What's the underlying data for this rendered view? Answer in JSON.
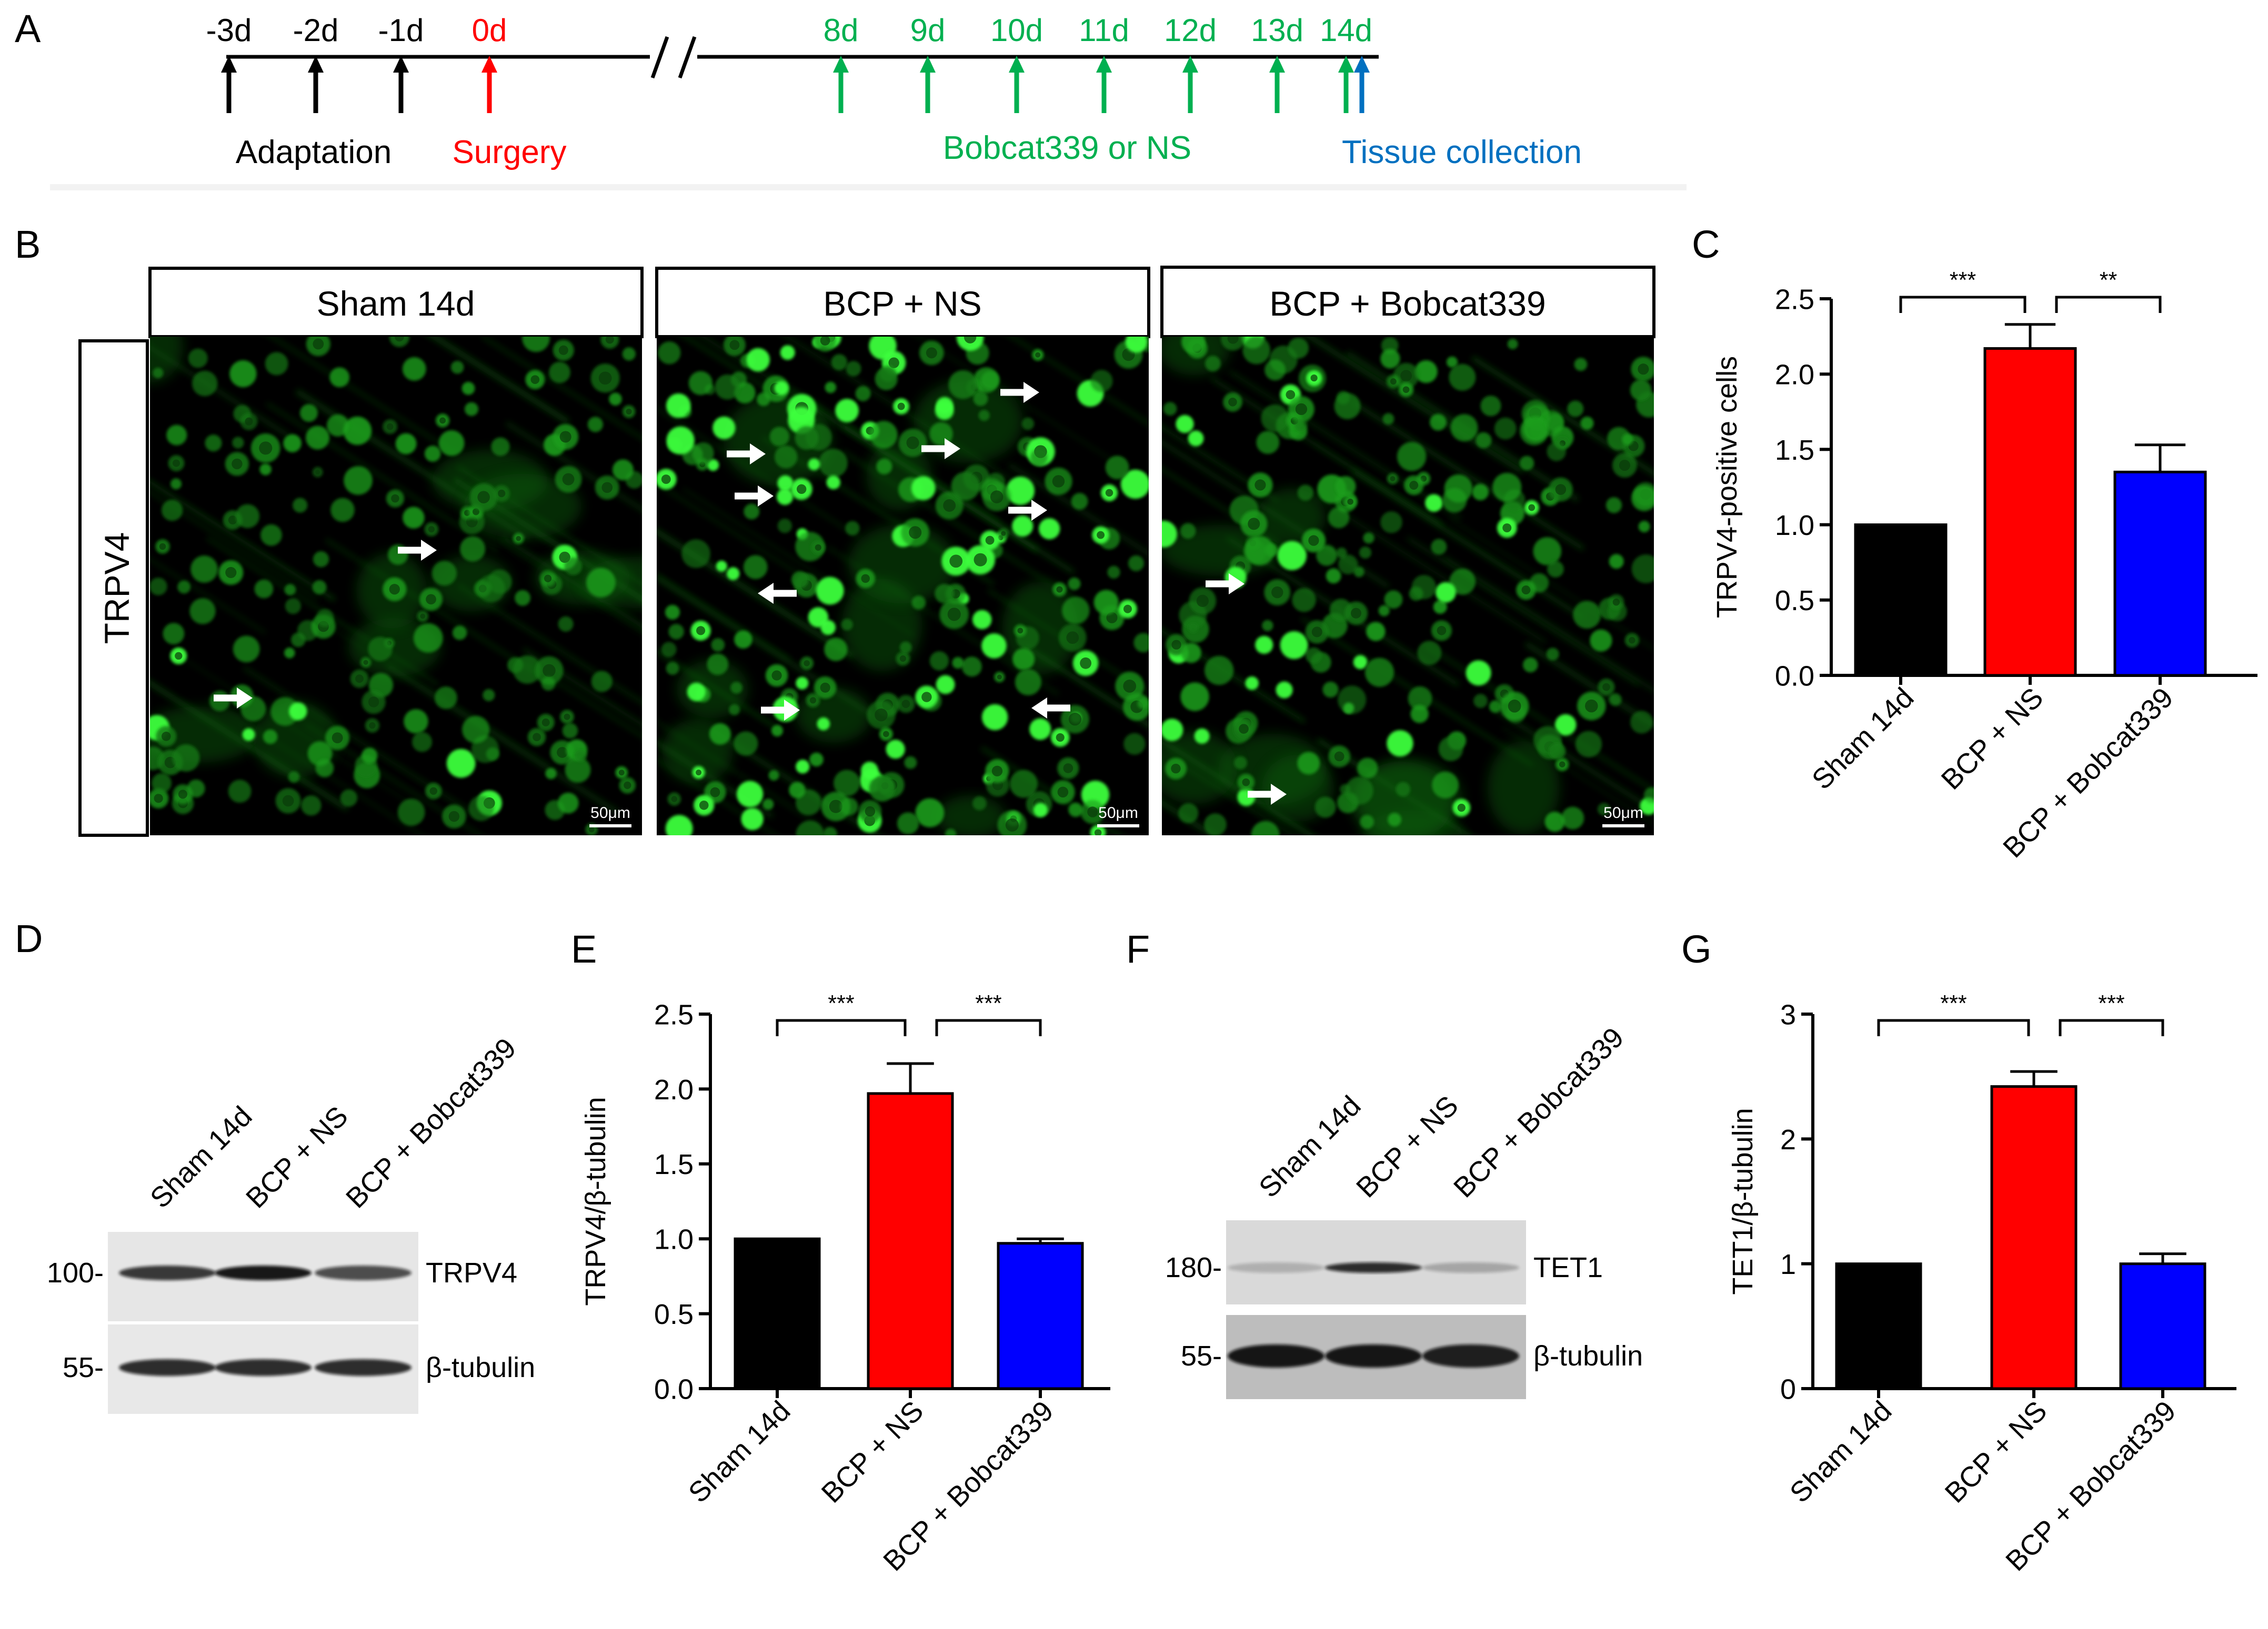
{
  "panel_labels": {
    "a": "A",
    "b": "B",
    "c": "C",
    "d": "D",
    "e": "E",
    "f": "F",
    "g": "G"
  },
  "timeline": {
    "days_pre": [
      "-3d",
      "-2d",
      "-1d"
    ],
    "day_surgery": "0d",
    "days_post": [
      "8d",
      "9d",
      "10d",
      "11d",
      "12d",
      "13d",
      "14d"
    ],
    "label_adaptation": "Adaptation",
    "label_surgery": "Surgery",
    "label_treatment": "Bobcat339 or NS",
    "label_collection": "Tissue collection",
    "colors": {
      "pre": "#000000",
      "surgery": "#ff0000",
      "treatment": "#00b050",
      "collection": "#0070c0"
    }
  },
  "micrographs": {
    "row_label": "TRPV4",
    "panels": [
      {
        "title": "Sham 14d",
        "scale_bar": "50μm"
      },
      {
        "title": "BCP + NS",
        "scale_bar": "50μm"
      },
      {
        "title": "BCP + Bobcat339",
        "scale_bar": "50μm"
      }
    ],
    "stain_color": "#22cc22"
  },
  "blot_d": {
    "lanes": [
      "Sham 14d",
      "BCP + NS",
      "BCP + Bobcat339"
    ],
    "rows": [
      {
        "marker": "100-",
        "protein": "TRPV4"
      },
      {
        "marker": "55-",
        "protein": "β-tubulin"
      }
    ]
  },
  "blot_f": {
    "lanes": [
      "Sham 14d",
      "BCP + NS",
      "BCP + Bobcat339"
    ],
    "rows": [
      {
        "marker": "180-",
        "protein": "TET1"
      },
      {
        "marker": "55-",
        "protein": "β-tubulin"
      }
    ]
  },
  "chart_data": [
    {
      "panel": "C",
      "type": "bar",
      "categories": [
        "Sham 14d",
        "BCP + NS",
        "BCP + Bobcat339"
      ],
      "values": [
        1.0,
        2.17,
        1.35
      ],
      "errors": [
        0,
        0.16,
        0.18
      ],
      "colors": [
        "#000000",
        "#ff0000",
        "#0000ff"
      ],
      "ylabel": "TRPV4-positive cells",
      "ylim": [
        0,
        2.5
      ],
      "yticks": [
        "0.0",
        "0.5",
        "1.0",
        "1.5",
        "2.0",
        "2.5"
      ],
      "significance": [
        {
          "from": 0,
          "to": 1,
          "label": "***"
        },
        {
          "from": 1,
          "to": 2,
          "label": "**"
        }
      ]
    },
    {
      "panel": "E",
      "type": "bar",
      "categories": [
        "Sham 14d",
        "BCP + NS",
        "BCP + Bobcat339"
      ],
      "values": [
        1.0,
        1.97,
        0.97
      ],
      "errors": [
        0,
        0.2,
        0.03
      ],
      "colors": [
        "#000000",
        "#ff0000",
        "#0000ff"
      ],
      "ylabel": "TRPV4/β-tubulin",
      "ylim": [
        0,
        2.5
      ],
      "yticks": [
        "0.0",
        "0.5",
        "1.0",
        "1.5",
        "2.0",
        "2.5"
      ],
      "significance": [
        {
          "from": 0,
          "to": 1,
          "label": "***"
        },
        {
          "from": 1,
          "to": 2,
          "label": "***"
        }
      ]
    },
    {
      "panel": "G",
      "type": "bar",
      "categories": [
        "Sham 14d",
        "BCP + NS",
        "BCP + Bobcat339"
      ],
      "values": [
        1.0,
        2.42,
        1.0
      ],
      "errors": [
        0,
        0.12,
        0.08
      ],
      "colors": [
        "#000000",
        "#ff0000",
        "#0000ff"
      ],
      "ylabel": "TET1/β-tubulin",
      "ylim": [
        0,
        3
      ],
      "yticks": [
        "0",
        "1",
        "2",
        "3"
      ],
      "significance": [
        {
          "from": 0,
          "to": 1,
          "label": "***"
        },
        {
          "from": 1,
          "to": 2,
          "label": "***"
        }
      ]
    }
  ]
}
